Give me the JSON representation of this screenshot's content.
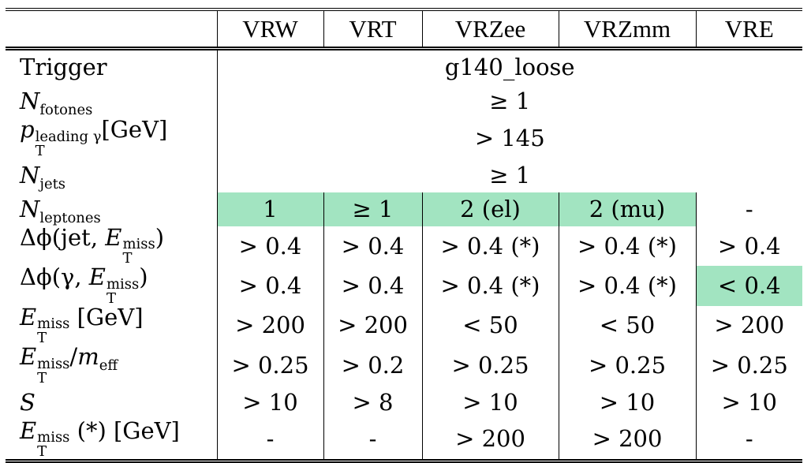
{
  "table": {
    "headers": [
      "",
      "VRW",
      "VRT",
      "VRZee",
      "VRZmm",
      "VRE"
    ],
    "rows": [
      {
        "label": {
          "type": "text",
          "text": "Trigger"
        },
        "merged": "g140_loose"
      },
      {
        "label": {
          "type": "sub",
          "base": "N",
          "sub": "fotones"
        },
        "merged": "≥ 1"
      },
      {
        "label": {
          "type": "subsup",
          "base": "p",
          "sub": "T",
          "sup": "leading γ",
          "suffix": "[GeV]"
        },
        "merged": "> 145"
      },
      {
        "label": {
          "type": "sub",
          "base": "N",
          "sub": "jets"
        },
        "merged": "≥ 1"
      },
      {
        "label": {
          "type": "sub",
          "base": "N",
          "sub": "leptones"
        },
        "cells": [
          "1",
          "≥ 1",
          "2 (el)",
          "2 (mu)",
          "-"
        ],
        "highlight": [
          true,
          true,
          true,
          true,
          false
        ]
      },
      {
        "label": {
          "type": "dphi",
          "prefix": "Δϕ(jet, ",
          "base": "E",
          "sub": "T",
          "sup": "miss",
          "suffix": ")"
        },
        "cells": [
          "> 0.4",
          "> 0.4",
          "> 0.4 (*)",
          "> 0.4 (*)",
          "> 0.4"
        ],
        "highlight": [
          false,
          false,
          false,
          false,
          false
        ]
      },
      {
        "label": {
          "type": "dphi",
          "prefix": "Δϕ(γ, ",
          "base": "E",
          "sub": "T",
          "sup": "miss",
          "suffix": ")"
        },
        "cells": [
          "> 0.4",
          "> 0.4",
          "> 0.4 (*)",
          "> 0.4 (*)",
          "< 0.4"
        ],
        "highlight": [
          false,
          false,
          false,
          false,
          true
        ]
      },
      {
        "label": {
          "type": "subsup",
          "base": "E",
          "sub": "T",
          "sup": "miss",
          "suffix": " [GeV]"
        },
        "cells": [
          "> 200",
          "> 200",
          "< 50",
          "< 50",
          "> 200"
        ],
        "highlight": [
          false,
          false,
          false,
          false,
          false
        ]
      },
      {
        "label": {
          "type": "ratio",
          "base": "E",
          "sub": "T",
          "sup": "miss",
          "divisor": "m",
          "divsub": "eff"
        },
        "cells": [
          "> 0.25",
          "> 0.2",
          "> 0.25",
          "> 0.25",
          "> 0.25"
        ],
        "highlight": [
          false,
          false,
          false,
          false,
          false
        ]
      },
      {
        "label": {
          "type": "cal",
          "text": "S"
        },
        "cells": [
          "> 10",
          "> 8",
          "> 10",
          "> 10",
          "> 10"
        ],
        "highlight": [
          false,
          false,
          false,
          false,
          false
        ]
      },
      {
        "label": {
          "type": "subsup",
          "base": "E",
          "sub": "T",
          "sup": "miss",
          "suffix": " (*) [GeV]"
        },
        "cells": [
          "-",
          "-",
          "> 200",
          "> 200",
          "-"
        ],
        "highlight": [
          false,
          false,
          false,
          false,
          false
        ]
      }
    ],
    "highlight_color": "#a2e4c1"
  }
}
